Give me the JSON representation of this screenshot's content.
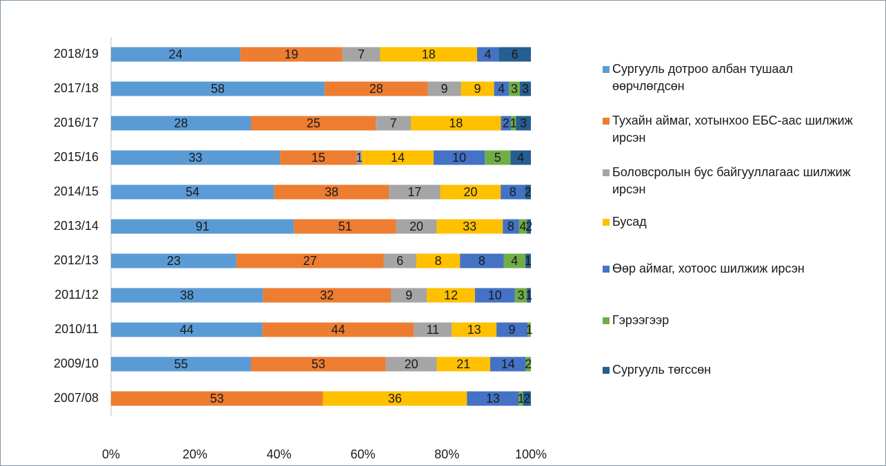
{
  "chart_data": {
    "type": "stacked_percent_bar",
    "categories": [
      "2018/19",
      "2017/18",
      "2016/17",
      "2015/16",
      "2014/15",
      "2013/14",
      "2012/13",
      "2011/12",
      "2010/11",
      "2009/10",
      "2007/08"
    ],
    "series": [
      {
        "name": "Сургууль дотроо албан тушаал өөрчлөгдсөн",
        "color": "#5b9bd5",
        "values": [
          24,
          58,
          28,
          33,
          54,
          91,
          23,
          38,
          44,
          55,
          null
        ]
      },
      {
        "name": "Тухайн аймаг, хотынхоо ЕБС-аас шилжиж ирсэн",
        "color": "#ed7d31",
        "values": [
          19,
          28,
          25,
          15,
          38,
          51,
          27,
          32,
          44,
          53,
          53
        ]
      },
      {
        "name": "Боловсролын бус байгууллагаас шилжиж ирсэн",
        "color": "#a5a5a5",
        "values": [
          7,
          9,
          7,
          1,
          17,
          20,
          6,
          9,
          11,
          20,
          null
        ]
      },
      {
        "name": "Бусад",
        "color": "#ffc000",
        "values": [
          18,
          9,
          18,
          14,
          20,
          33,
          8,
          12,
          13,
          21,
          36
        ]
      },
      {
        "name": "Өөр аймаг, хотоос шилжиж ирсэн",
        "color": "#4472c4",
        "values": [
          4,
          4,
          2,
          10,
          8,
          8,
          8,
          10,
          9,
          14,
          13
        ]
      },
      {
        "name": "Гэрээгээр",
        "color": "#70ad47",
        "values": [
          null,
          3,
          1,
          5,
          null,
          4,
          4,
          3,
          1,
          2,
          1
        ]
      },
      {
        "name": "Сургууль төгссөн",
        "color": "#255e91",
        "values": [
          6,
          3,
          3,
          4,
          2,
          2,
          1,
          1,
          null,
          null,
          2
        ]
      }
    ],
    "xlim": [
      0,
      100
    ],
    "xticks": [
      {
        "value": 0,
        "label": "0%"
      },
      {
        "value": 20,
        "label": "20%"
      },
      {
        "value": 40,
        "label": "40%"
      },
      {
        "value": 60,
        "label": "60%"
      },
      {
        "value": 80,
        "label": "80%"
      },
      {
        "value": 100,
        "label": "100%"
      }
    ],
    "legend_position": "right"
  }
}
